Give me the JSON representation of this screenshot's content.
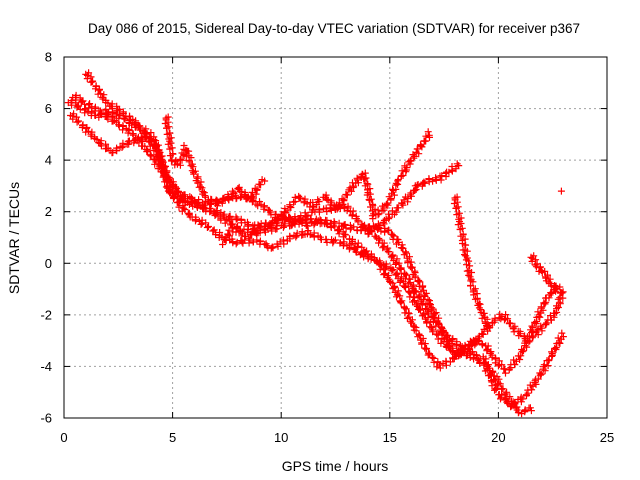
{
  "chart_data": {
    "type": "scatter",
    "title": "Day 086 of 2015, Sidereal Day-to-day VTEC variation (SDTVAR) for receiver p367",
    "xlabel": "GPS time / hours",
    "ylabel": "SDTVAR / TECUs",
    "xlim": [
      0,
      25
    ],
    "ylim": [
      -6,
      8
    ],
    "xticks": [
      "0",
      "5",
      "10",
      "15",
      "20",
      "25"
    ],
    "yticks": [
      "-6",
      "-4",
      "-2",
      "0",
      "2",
      "4",
      "6",
      "8"
    ],
    "grid": true,
    "marker": "+",
    "color": "#ff0000",
    "series": [
      {
        "x": [
          0.2,
          0.8,
          1.5,
          2.0,
          2.8,
          3.5,
          4.2,
          4.8,
          5.3,
          6.0,
          6.8,
          7.5,
          8.2,
          9.0,
          9.8,
          10.5,
          11.3,
          12.0,
          12.8,
          13.5,
          14.3,
          15.0,
          15.6,
          16.2,
          16.8,
          17.4,
          18.0,
          18.6,
          19.3,
          19.9,
          20.5,
          21.0,
          21.6
        ],
        "y": [
          6.3,
          6.0,
          5.7,
          5.9,
          5.6,
          5.2,
          4.6,
          3.3,
          2.6,
          2.3,
          2.0,
          1.6,
          1.3,
          1.2,
          1.4,
          1.5,
          1.7,
          1.6,
          1.5,
          1.3,
          1.4,
          1.2,
          0.6,
          -0.5,
          -1.5,
          -2.6,
          -3.1,
          -3.4,
          -3.7,
          -4.5,
          -5.3,
          -5.8,
          -5.6
        ]
      },
      {
        "x": [
          0.3,
          0.9,
          1.5,
          2.2,
          3.0,
          3.8,
          4.4,
          5.0,
          5.7,
          6.5,
          7.3,
          8.0,
          8.8,
          9.6,
          10.4,
          11.2,
          12.0,
          12.8,
          13.6,
          14.4,
          15.2,
          15.8,
          16.4,
          17.0,
          17.6,
          18.2,
          18.8,
          19.4,
          20.0,
          20.6,
          21.2,
          21.8,
          22.5,
          23.0
        ],
        "y": [
          5.8,
          5.3,
          4.8,
          4.3,
          4.7,
          4.9,
          4.2,
          2.6,
          1.9,
          1.5,
          1.0,
          0.8,
          0.9,
          0.6,
          1.0,
          1.2,
          0.9,
          0.8,
          0.4,
          0.1,
          -0.3,
          -1.0,
          -1.8,
          -2.6,
          -3.2,
          -3.5,
          -3.6,
          -4.0,
          -5.1,
          -5.5,
          -5.2,
          -4.5,
          -3.5,
          -2.7
        ]
      },
      {
        "x": [
          1.0,
          1.5,
          2.0,
          2.8,
          3.5,
          4.2,
          4.8,
          5.5,
          6.3,
          7.2,
          8.0,
          8.8,
          9.6,
          10.4,
          11.2,
          12.0,
          12.6,
          13.2,
          13.8,
          14.5,
          15.1,
          15.6,
          16.2,
          16.8,
          17.3,
          17.9,
          18.4,
          18.9,
          19.4,
          19.9,
          20.4,
          21.0,
          21.6,
          22.2,
          22.8
        ],
        "y": [
          7.4,
          6.8,
          6.2,
          5.8,
          5.3,
          4.8,
          2.8,
          2.4,
          2.2,
          1.9,
          1.7,
          1.4,
          1.6,
          1.8,
          1.5,
          1.6,
          1.3,
          0.9,
          0.5,
          0.0,
          -0.8,
          -1.6,
          -2.6,
          -3.5,
          -4.0,
          -3.7,
          -3.3,
          -3.0,
          -3.2,
          -3.8,
          -4.2,
          -3.6,
          -2.5,
          -1.4,
          -0.8
        ]
      },
      {
        "x": [
          0.4,
          1.0,
          1.8,
          2.5,
          3.2,
          4.0,
          4.6,
          5.2,
          5.8,
          6.6,
          7.4,
          8.2,
          9.0,
          9.8,
          10.6,
          11.4,
          12.2,
          13.0,
          13.7,
          14.4,
          15.0,
          15.6,
          16.2,
          16.8,
          17.4,
          18.0,
          18.6,
          19.2,
          19.7,
          20.2,
          20.8,
          21.4,
          22.0,
          22.6,
          23.0
        ],
        "y": [
          6.5,
          6.2,
          5.8,
          5.4,
          5.0,
          4.2,
          3.5,
          2.8,
          2.5,
          2.3,
          2.5,
          2.6,
          2.3,
          1.8,
          1.6,
          2.0,
          2.1,
          2.2,
          1.5,
          1.0,
          0.4,
          -0.3,
          -1.1,
          -1.9,
          -2.6,
          -3.6,
          -3.3,
          -2.8,
          -2.3,
          -2.0,
          -2.6,
          -3.0,
          -2.5,
          -2.0,
          -1.0
        ]
      },
      {
        "x": [
          4.7,
          5.0,
          5.3,
          5.6,
          6.0,
          6.5,
          7.0,
          7.5,
          8.0,
          8.6,
          9.2
        ],
        "y": [
          5.7,
          4.0,
          3.8,
          4.5,
          3.5,
          2.6,
          2.3,
          2.5,
          2.9,
          2.5,
          3.3
        ]
      },
      {
        "x": [
          7.3,
          7.8,
          8.4,
          9.0,
          9.6,
          10.2,
          10.8,
          11.4,
          12.0,
          12.6,
          13.2,
          13.8,
          14.3,
          14.9,
          15.4,
          15.9,
          16.4,
          16.9
        ],
        "y": [
          0.8,
          1.4,
          1.0,
          1.3,
          1.5,
          2.0,
          2.6,
          2.2,
          2.6,
          2.1,
          2.9,
          3.5,
          1.8,
          2.3,
          3.2,
          3.9,
          4.5,
          5.1
        ]
      },
      {
        "x": [
          14.0,
          14.6,
          15.2,
          15.8,
          16.3,
          16.8,
          17.3,
          17.8,
          18.3
        ],
        "y": [
          1.2,
          1.5,
          2.0,
          2.5,
          3.0,
          3.2,
          3.3,
          3.6,
          3.9
        ]
      },
      {
        "x": [
          18.0,
          18.4,
          18.8,
          19.2,
          19.6
        ],
        "y": [
          2.6,
          0.8,
          -0.9,
          -1.8,
          -2.6
        ]
      },
      {
        "x": [
          21.5,
          21.8,
          22.1,
          22.4,
          22.7,
          22.9
        ],
        "y": [
          0.3,
          -0.1,
          -0.4,
          -0.8,
          -1.0,
          -1.1
        ]
      },
      {
        "x": [
          22.9
        ],
        "y": [
          2.8
        ]
      }
    ]
  }
}
